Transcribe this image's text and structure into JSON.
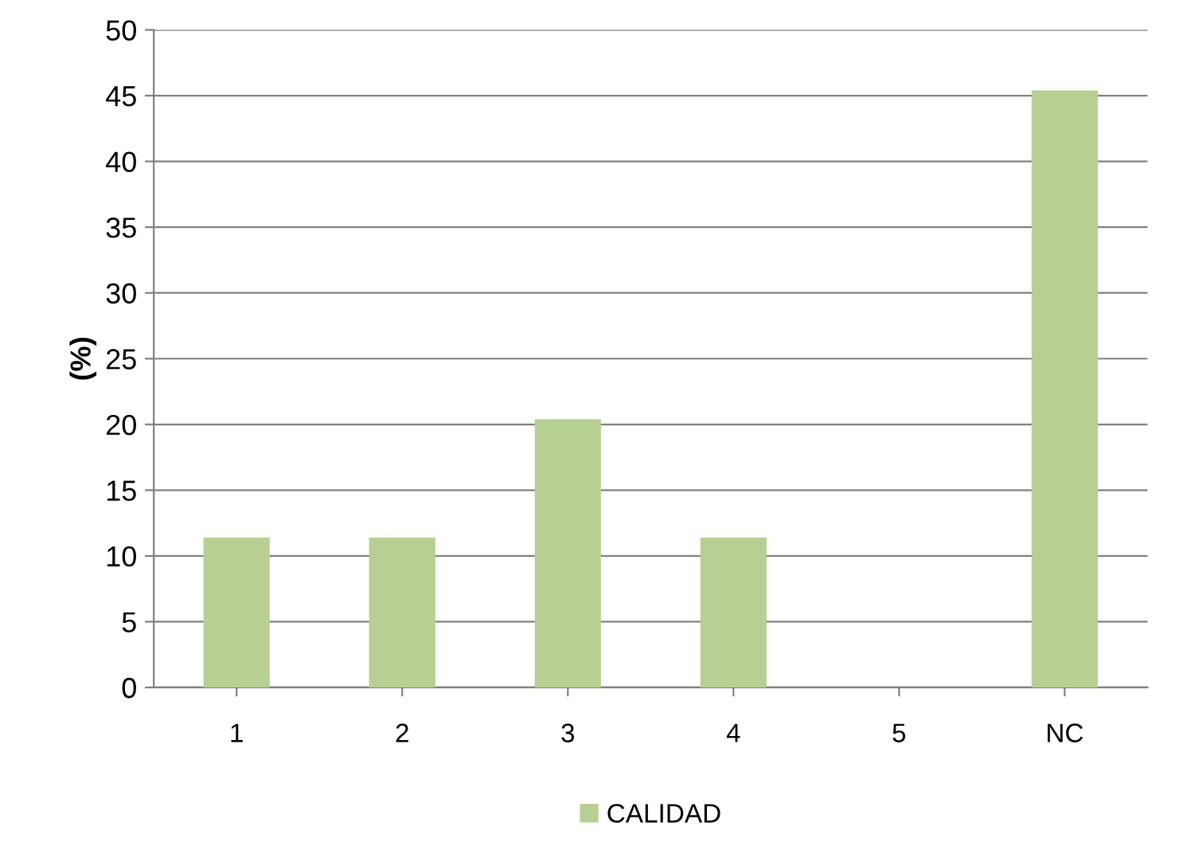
{
  "chart_data": {
    "type": "bar",
    "ylabel": "(%)",
    "categories": [
      "1",
      "2",
      "3",
      "4",
      "5",
      "NC"
    ],
    "series": [
      {
        "name": "CALIDAD",
        "color": "#b7cf93",
        "values": [
          11.4,
          11.4,
          20.4,
          11.4,
          0,
          45.4
        ]
      }
    ],
    "ylim": [
      0,
      50
    ],
    "yticks": [
      0,
      5,
      10,
      15,
      20,
      25,
      30,
      35,
      40,
      45,
      50
    ],
    "grid": "y",
    "legend": "bottom"
  }
}
